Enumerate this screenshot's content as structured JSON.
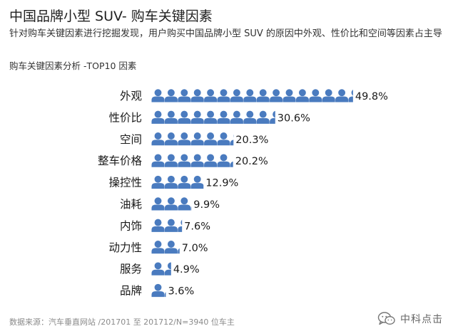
{
  "header": {
    "title": "中国品牌小型 SUV- 购车关键因素",
    "subtitle": "针对购车关键因素进行挖掘发现，用户购买中国品牌小型 SUV 的原因中外观、性价比和空间等因素占主导",
    "section_label": "购车关键因素分析 -TOP10 因素"
  },
  "chart_data": {
    "type": "bar",
    "orientation": "horizontal",
    "mark": "person-pictogram",
    "color": "#4a7bbf",
    "categories": [
      "外观",
      "性价比",
      "空间",
      "整车价格",
      "操控性",
      "油耗",
      "内饰",
      "动力性",
      "服务",
      "品牌"
    ],
    "values": [
      49.8,
      30.6,
      20.3,
      20.2,
      12.9,
      9.9,
      7.6,
      7.0,
      4.9,
      3.6
    ],
    "value_labels": [
      "49.8%",
      "30.6%",
      "20.3%",
      "20.2%",
      "12.9%",
      "9.9%",
      "7.6%",
      "7.0%",
      "4.9%",
      "3.6%"
    ],
    "unit": "%",
    "xlim": [
      0,
      50
    ]
  },
  "footer": {
    "source": "数据来源：汽车垂直网站 /201701 至 201712/N=3940 位车主",
    "brand": "中科点击",
    "brand_icon": "wechat-icon"
  }
}
